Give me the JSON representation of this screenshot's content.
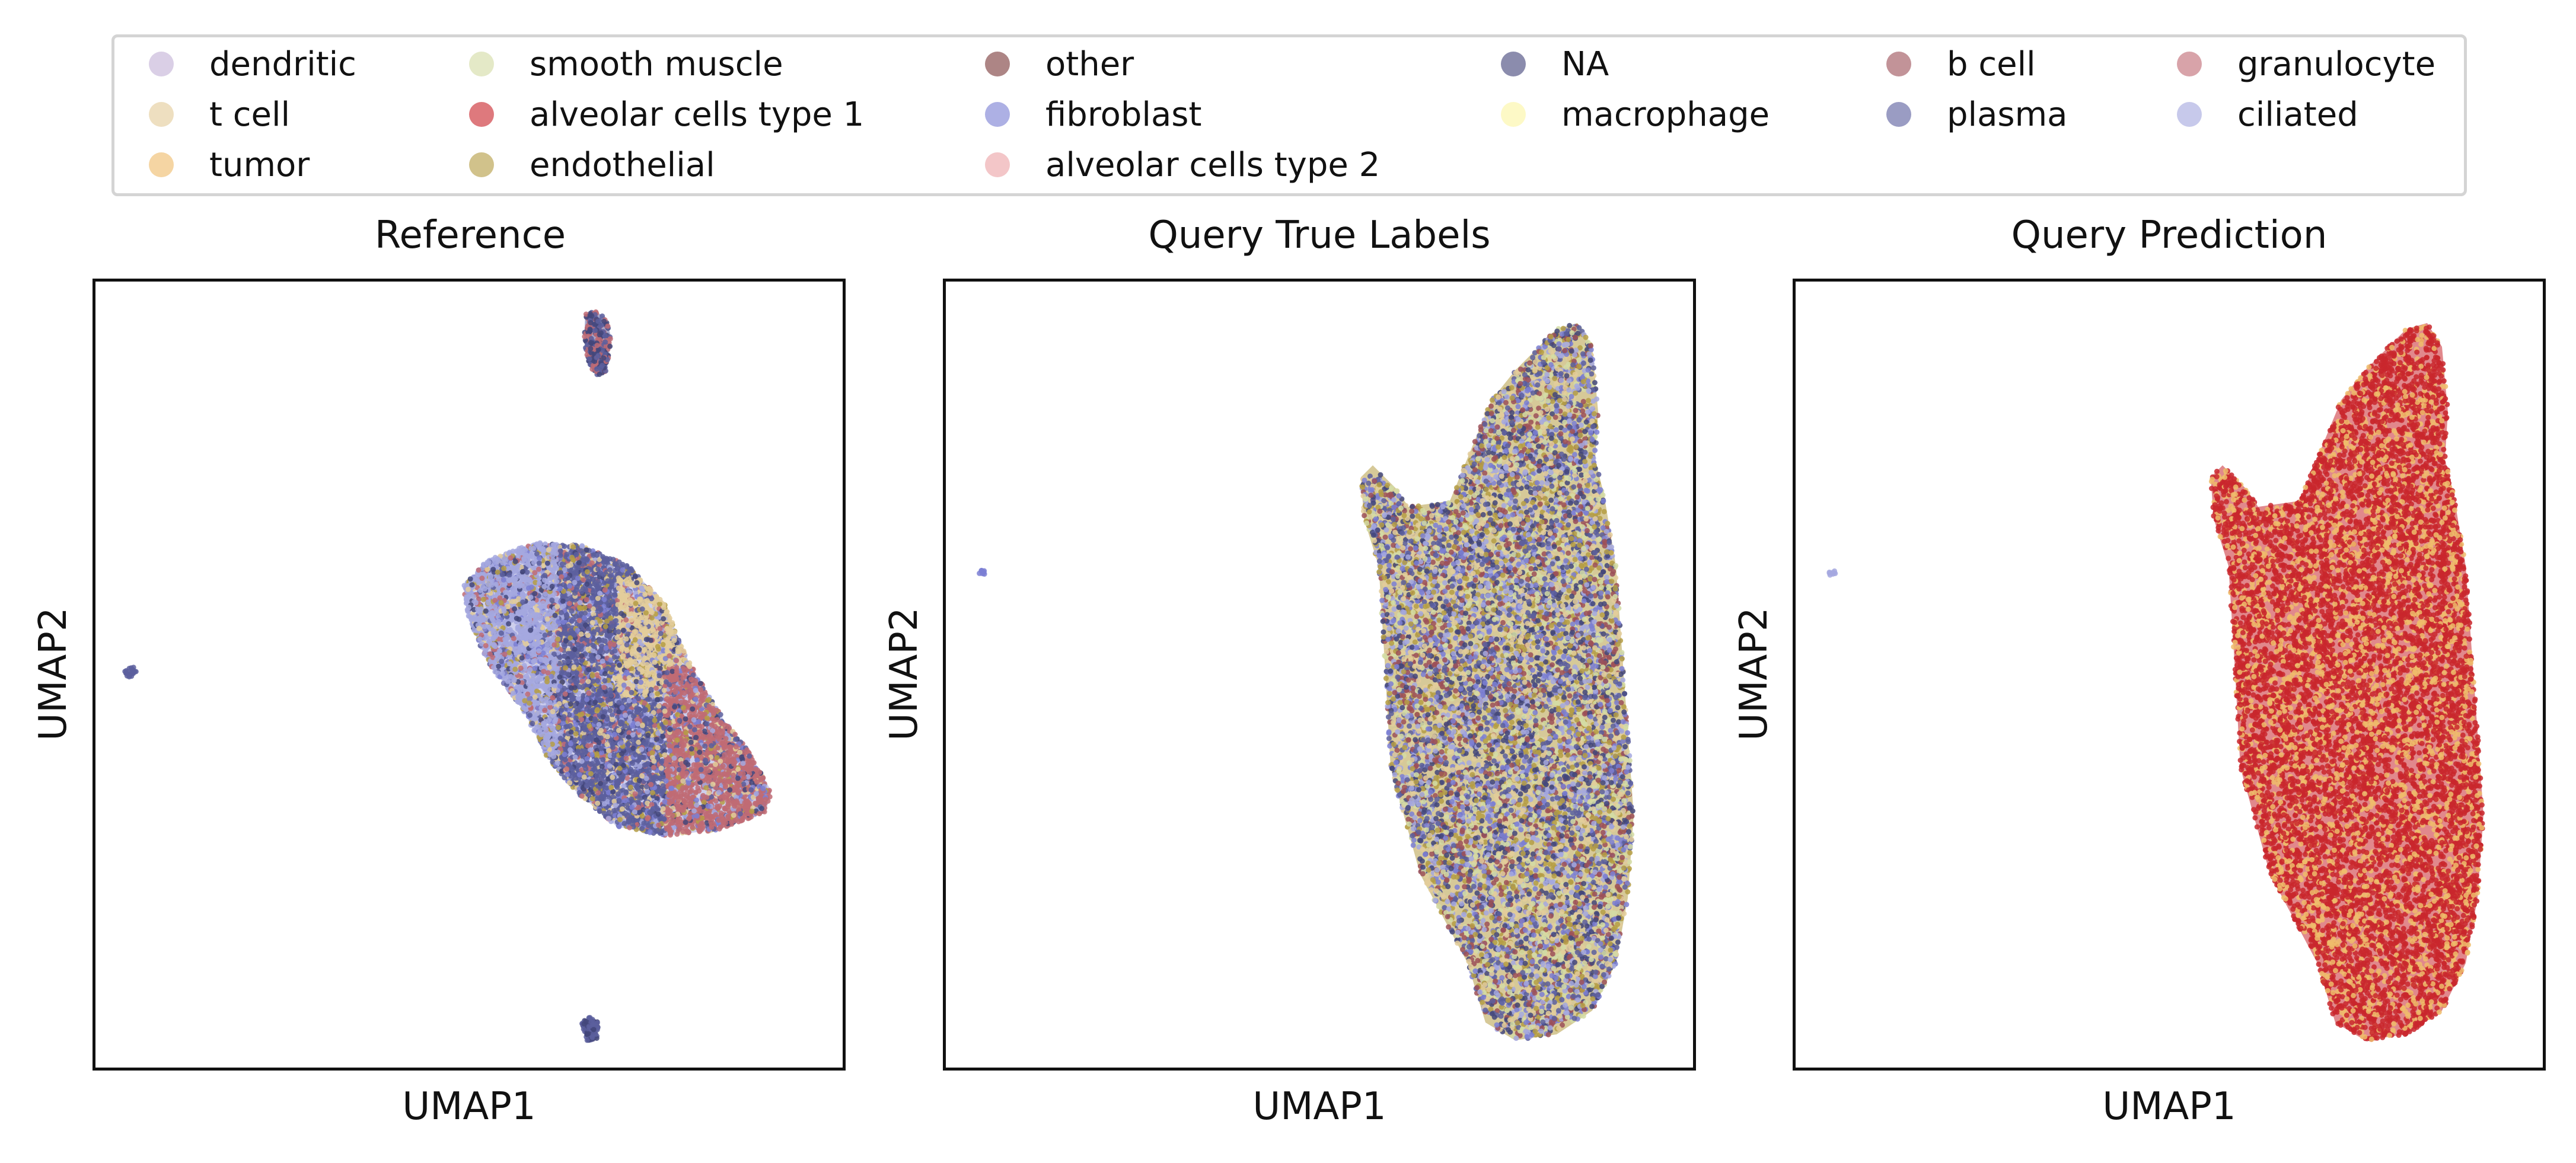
{
  "legend": {
    "items": [
      {
        "label": "dendritic",
        "color": "#c4b2d6"
      },
      {
        "label": "t cell",
        "color": "#e3cc9a"
      },
      {
        "label": "tumor",
        "color": "#efbc6b"
      },
      {
        "label": "smooth muscle",
        "color": "#d3dca4"
      },
      {
        "label": "alveolar cells type 1",
        "color": "#c9272d"
      },
      {
        "label": "endothelial",
        "color": "#b59d44"
      },
      {
        "label": "other",
        "color": "#7a3a3a"
      },
      {
        "label": "fibroblast",
        "color": "#7b7fd4"
      },
      {
        "label": "alveolar cells type 2",
        "color": "#eca3a7"
      },
      {
        "label": "NA",
        "color": "#43467a"
      },
      {
        "label": "macrophage",
        "color": "#fbf5a3"
      },
      {
        "label": "b cell",
        "color": "#9c5058"
      },
      {
        "label": "plasma",
        "color": "#5c5f9e"
      },
      {
        "label": "granulocyte",
        "color": "#c06b74"
      },
      {
        "label": "ciliated",
        "color": "#a5a8df"
      }
    ]
  },
  "chart_data": [
    {
      "type": "scatter",
      "title": "Reference",
      "xlabel": "UMAP1",
      "ylabel": "UMAP2",
      "ticks": "none",
      "clusters": [
        {
          "name": "main",
          "center": [
            0.79,
            0.49
          ],
          "series_mix": [
            "ciliated",
            "plasma",
            "NA",
            "t cell",
            "granulocyte",
            "fibroblast",
            "endothelial"
          ]
        },
        {
          "name": "top",
          "center": [
            0.66,
            0.08
          ],
          "series_mix": [
            "plasma",
            "granulocyte",
            "NA"
          ]
        },
        {
          "name": "bottom",
          "center": [
            0.65,
            0.95
          ],
          "series_mix": [
            "plasma",
            "NA"
          ]
        },
        {
          "name": "outlier",
          "center": [
            0.05,
            0.51
          ],
          "series_mix": [
            "plasma"
          ]
        }
      ]
    },
    {
      "type": "scatter",
      "title": "Query True Labels",
      "xlabel": "UMAP1",
      "ylabel": "UMAP2",
      "ticks": "none",
      "clusters": [
        {
          "name": "main",
          "center": [
            0.8,
            0.5
          ],
          "series_mix": [
            "endothelial",
            "plasma",
            "NA",
            "ciliated",
            "fibroblast",
            "b cell",
            "smooth muscle",
            "t cell"
          ]
        },
        {
          "name": "outlier",
          "center": [
            0.05,
            0.38
          ],
          "series_mix": [
            "fibroblast"
          ]
        }
      ]
    },
    {
      "type": "scatter",
      "title": "Query Prediction",
      "xlabel": "UMAP1",
      "ylabel": "UMAP2",
      "ticks": "none",
      "clusters": [
        {
          "name": "main",
          "center": [
            0.8,
            0.5
          ],
          "series_mix": [
            "alveolar cells type 1",
            "tumor"
          ]
        },
        {
          "name": "outlier",
          "center": [
            0.05,
            0.38
          ],
          "series_mix": [
            "ciliated"
          ]
        }
      ]
    }
  ]
}
